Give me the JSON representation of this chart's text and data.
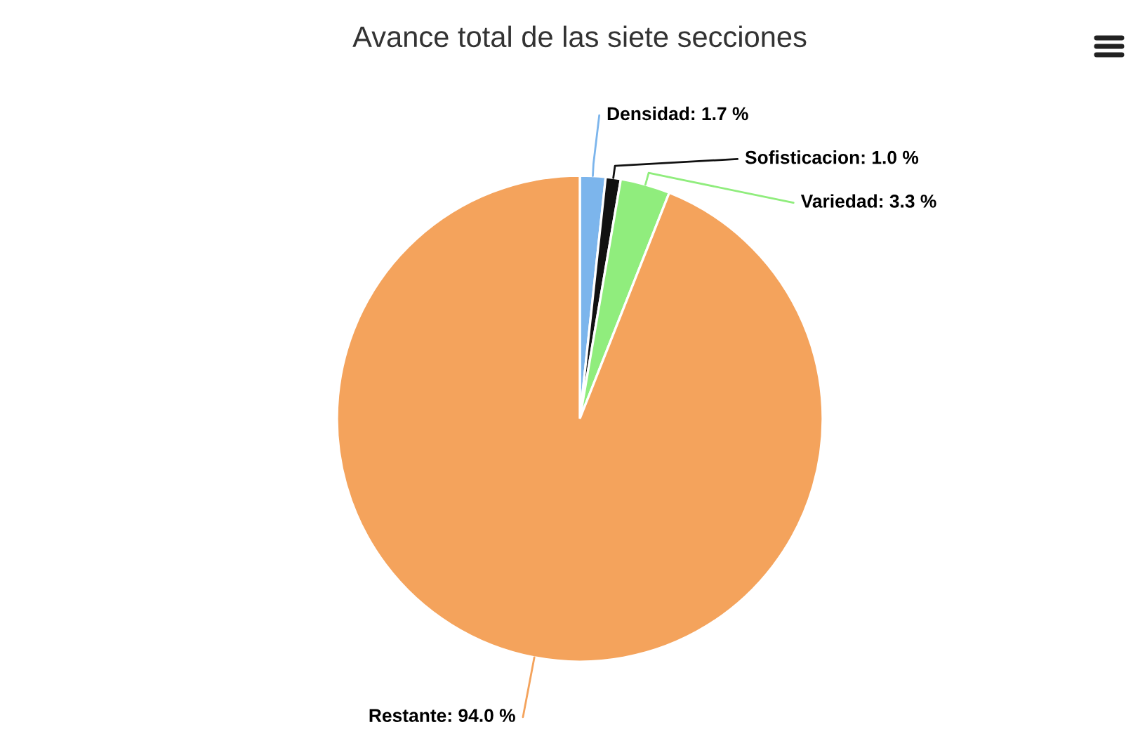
{
  "chart_data": {
    "type": "pie",
    "title": "Avance total de las siete secciones",
    "categories": [
      "Densidad",
      "Sofisticacion",
      "Variedad",
      "Restante"
    ],
    "values": [
      1.7,
      1.0,
      3.3,
      94.0
    ],
    "value_labels": [
      "1.7 %",
      "1.0 %",
      "3.3 %",
      "94.0 %"
    ],
    "colors": [
      "#7cb5ec",
      "#111111",
      "#90ed7d",
      "#f4a35c"
    ],
    "legend": false
  }
}
